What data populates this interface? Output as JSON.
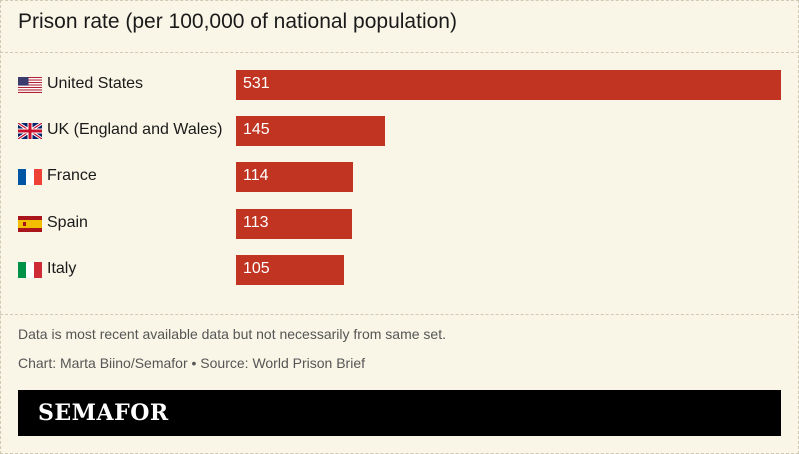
{
  "title": "Prison rate (per 100,000 of national population)",
  "chart_data": {
    "type": "bar",
    "orientation": "horizontal",
    "title": "Prison rate (per 100,000 of national population)",
    "categories": [
      "United States",
      "UK (England and Wales)",
      "France",
      "Spain",
      "Italy"
    ],
    "values": [
      531,
      145,
      114,
      113,
      105
    ],
    "data_labels": [
      "531",
      "145",
      "114",
      "113",
      "105"
    ],
    "flags": [
      "us-flag-icon",
      "uk-flag-icon",
      "france-flag-icon",
      "spain-flag-icon",
      "italy-flag-icon"
    ],
    "xlim": [
      0,
      531
    ],
    "bar_color": "#c03421",
    "xlabel": "",
    "ylabel": ""
  },
  "notes": {
    "caveat": "Data is most recent available data but not necessarily from same set.",
    "credit": "Chart: Marta Biino/Semafor • Source: World Prison Brief"
  },
  "brand": {
    "logo_text": "SEMAFOR"
  },
  "colors": {
    "background": "#f9f6e7",
    "bar": "#c03421",
    "footer": "#000000"
  }
}
